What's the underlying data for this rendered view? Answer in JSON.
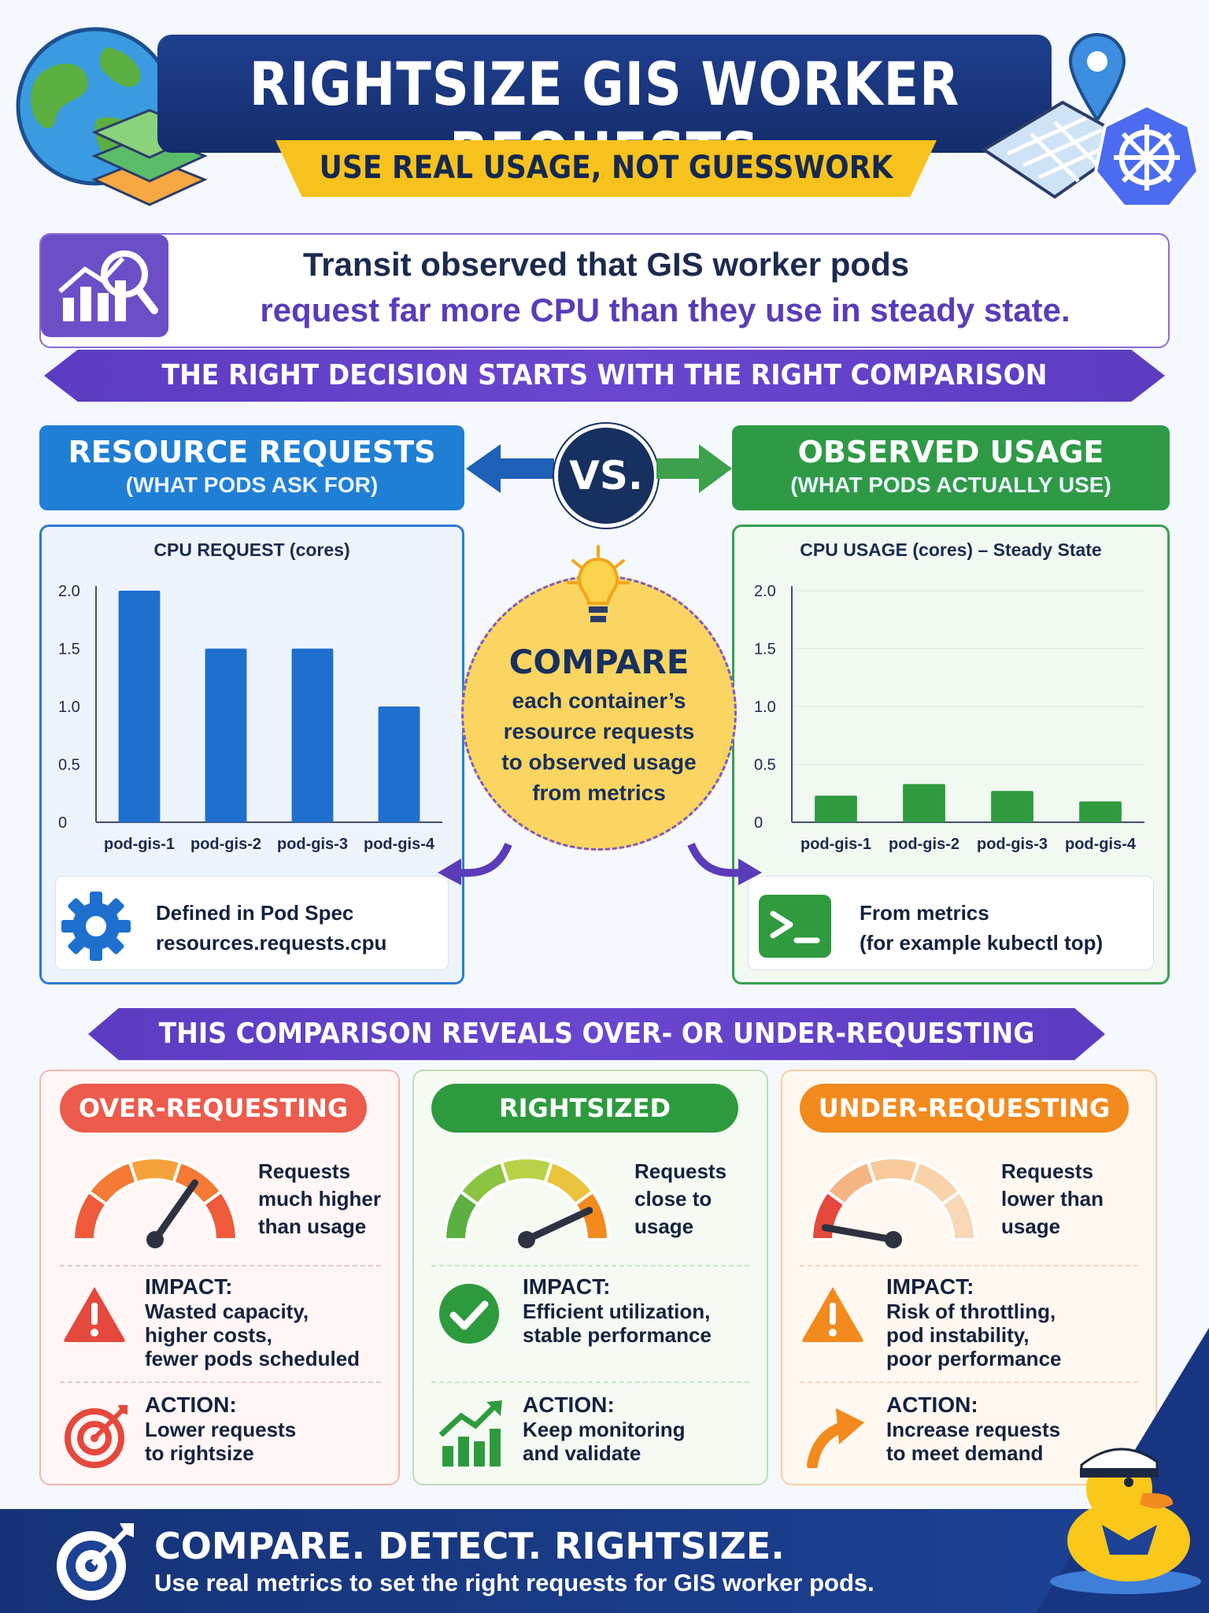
{
  "header": {
    "title": "RIGHTSIZE GIS WORKER REQUESTS",
    "subtitle": "USE REAL USAGE, NOT GUESSWORK"
  },
  "intro": {
    "line1": "Transit observed that GIS worker pods",
    "line2": "request far more CPU than they use in steady state."
  },
  "banner_top": "THE RIGHT DECISION STARTS WITH THE RIGHT COMPARISON",
  "requests_column": {
    "title": "RESOURCE REQUESTS",
    "subtitle": "(WHAT PODS ASK FOR)",
    "info_line1": "Defined in Pod Spec",
    "info_line2": "resources.requests.cpu"
  },
  "vs_label": "VS.",
  "usage_column": {
    "title": "OBSERVED USAGE",
    "subtitle": "(WHAT PODS ACTUALLY USE)",
    "info_line1": "From metrics",
    "info_line2": "(for example kubectl top)"
  },
  "compare": {
    "title": "COMPARE",
    "line1": "each container’s",
    "line2": "resource requests",
    "line3": "to observed usage",
    "line4": "from metrics"
  },
  "chart_data": [
    {
      "type": "bar",
      "title": "CPU REQUEST (cores)",
      "categories": [
        "pod-gis-1",
        "pod-gis-2",
        "pod-gis-3",
        "pod-gis-4"
      ],
      "values": [
        2.0,
        1.5,
        1.5,
        1.0
      ],
      "ylim": [
        0,
        2.0
      ],
      "yticks": [
        "2.0",
        "1.5",
        "1.0",
        "0.5",
        "0"
      ],
      "color": "#1f6fcf",
      "grid": false
    },
    {
      "type": "bar",
      "title": "CPU USAGE (cores) – Steady State",
      "categories": [
        "pod-gis-1",
        "pod-gis-2",
        "pod-gis-3",
        "pod-gis-4"
      ],
      "values": [
        0.23,
        0.33,
        0.27,
        0.18
      ],
      "ylim": [
        0,
        2.0
      ],
      "yticks": [
        "2.0",
        "1.5",
        "1.0",
        "0.5",
        "0"
      ],
      "color": "#2f9a3e",
      "grid": true
    }
  ],
  "banner_bottom": "THIS COMPARISON REVEALS OVER- OR UNDER-REQUESTING",
  "cards": [
    {
      "label": "OVER-REQUESTING",
      "desc": [
        "Requests",
        "much higher",
        "than usage"
      ],
      "impact_label": "IMPACT:",
      "impact": [
        "Wasted capacity,",
        "higher costs,",
        "fewer pods scheduled"
      ],
      "action_label": "ACTION:",
      "action": [
        "Lower requests",
        "to rightsize"
      ],
      "color": "#ec5b4c"
    },
    {
      "label": "RIGHTSIZED",
      "desc": [
        "Requests",
        "close to",
        "usage"
      ],
      "impact_label": "IMPACT:",
      "impact": [
        "Efficient utilization,",
        "stable performance"
      ],
      "action_label": "ACTION:",
      "action": [
        "Keep monitoring",
        "and validate"
      ],
      "color": "#2e9a3e"
    },
    {
      "label": "UNDER-REQUESTING",
      "desc": [
        "Requests",
        "lower than",
        "usage"
      ],
      "impact_label": "IMPACT:",
      "impact": [
        "Risk of throttling,",
        "pod instability,",
        "poor performance"
      ],
      "action_label": "ACTION:",
      "action": [
        "Increase requests",
        "to meet demand"
      ],
      "color": "#f28a1e"
    }
  ],
  "footer": {
    "title": "COMPARE. DETECT. RIGHTSIZE.",
    "subtitle": "Use real metrics to set the right requests for GIS worker pods."
  },
  "icons": [
    "globe-icon",
    "map-layers-icon",
    "map-pin-icon",
    "kubernetes-helm-icon",
    "analytics-magnifier-icon",
    "lightbulb-icon",
    "gear-icon",
    "terminal-icon",
    "gauge-icon",
    "warning-icon",
    "check-icon",
    "target-icon",
    "trend-up-icon",
    "arrow-up-icon",
    "duck-mascot-icon"
  ]
}
